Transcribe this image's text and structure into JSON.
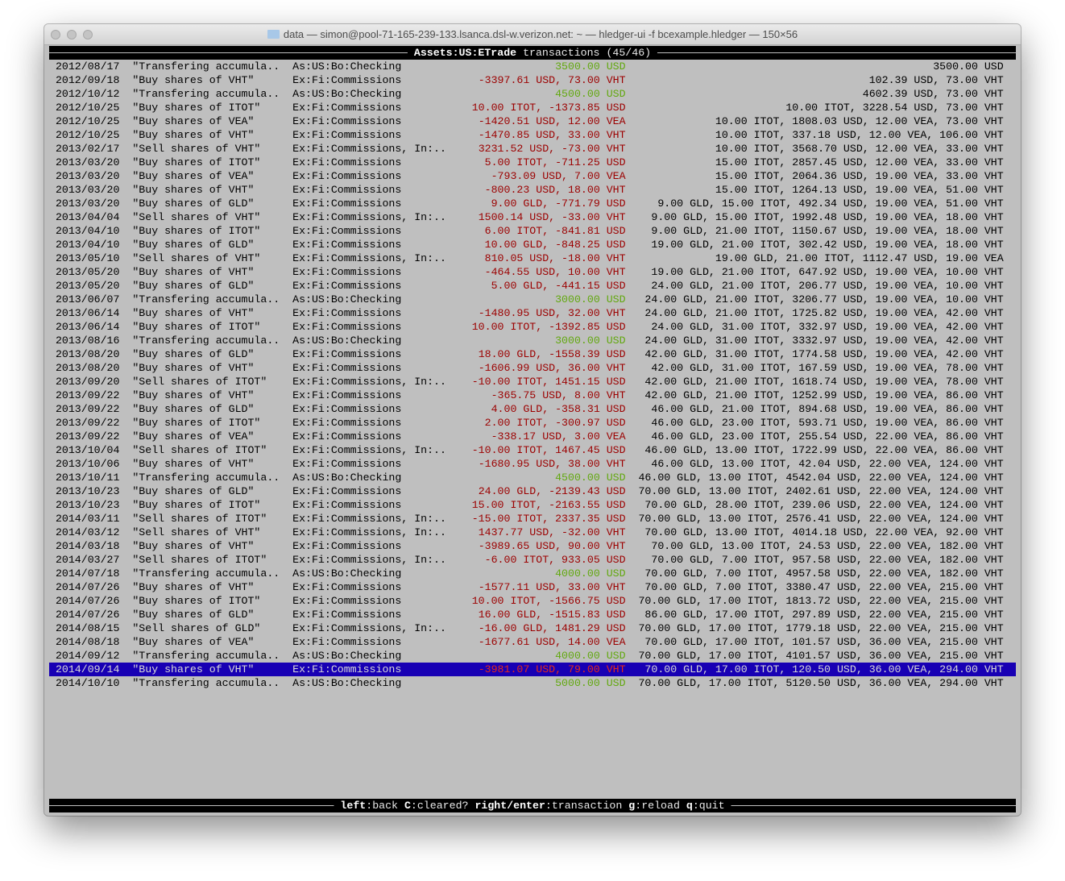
{
  "window": {
    "title": "data — simon@pool-71-165-239-133.lsanca.dsl-w.verizon.net: ~ — hledger-ui -f bcexample.hledger — 150×56",
    "folder_icon": "folder-icon"
  },
  "header": {
    "account": "Assets:US:ETrade",
    "suffix": "transactions (45/46)"
  },
  "colors": {
    "background": "#bfbfbf",
    "positive_amount": "#62a80f",
    "negative_amount": "#9c0000",
    "selection": "#1800b4"
  },
  "selected_index": 44,
  "rows": [
    {
      "date": "2012/08/17",
      "desc": "\"Transfering accumula..",
      "account": "As:US:Bo:Checking",
      "amount": "3500.00 USD",
      "style": "green",
      "balance": "3500.00 USD"
    },
    {
      "date": "2012/09/18",
      "desc": "\"Buy shares of VHT\"",
      "account": "Ex:Fi:Commissions",
      "amount": "-3397.61 USD, 73.00 VHT",
      "style": "red",
      "balance": "102.39 USD, 73.00 VHT"
    },
    {
      "date": "2012/10/12",
      "desc": "\"Transfering accumula..",
      "account": "As:US:Bo:Checking",
      "amount": "4500.00 USD",
      "style": "green",
      "balance": "4602.39 USD, 73.00 VHT"
    },
    {
      "date": "2012/10/25",
      "desc": "\"Buy shares of ITOT\"",
      "account": "Ex:Fi:Commissions",
      "amount": "10.00 ITOT, -1373.85 USD",
      "style": "red",
      "balance": "10.00 ITOT, 3228.54 USD, 73.00 VHT"
    },
    {
      "date": "2012/10/25",
      "desc": "\"Buy shares of VEA\"",
      "account": "Ex:Fi:Commissions",
      "amount": "-1420.51 USD, 12.00 VEA",
      "style": "red",
      "balance": "10.00 ITOT, 1808.03 USD, 12.00 VEA, 73.00 VHT"
    },
    {
      "date": "2012/10/25",
      "desc": "\"Buy shares of VHT\"",
      "account": "Ex:Fi:Commissions",
      "amount": "-1470.85 USD, 33.00 VHT",
      "style": "red",
      "balance": "10.00 ITOT, 337.18 USD, 12.00 VEA, 106.00 VHT"
    },
    {
      "date": "2013/02/17",
      "desc": "\"Sell shares of VHT\"",
      "account": "Ex:Fi:Commissions, In:..",
      "amount": "3231.52 USD, -73.00 VHT",
      "style": "red",
      "balance": "10.00 ITOT, 3568.70 USD, 12.00 VEA, 33.00 VHT"
    },
    {
      "date": "2013/03/20",
      "desc": "\"Buy shares of ITOT\"",
      "account": "Ex:Fi:Commissions",
      "amount": "5.00 ITOT, -711.25 USD",
      "style": "red",
      "balance": "15.00 ITOT, 2857.45 USD, 12.00 VEA, 33.00 VHT"
    },
    {
      "date": "2013/03/20",
      "desc": "\"Buy shares of VEA\"",
      "account": "Ex:Fi:Commissions",
      "amount": "-793.09 USD, 7.00 VEA",
      "style": "red",
      "balance": "15.00 ITOT, 2064.36 USD, 19.00 VEA, 33.00 VHT"
    },
    {
      "date": "2013/03/20",
      "desc": "\"Buy shares of VHT\"",
      "account": "Ex:Fi:Commissions",
      "amount": "-800.23 USD, 18.00 VHT",
      "style": "red",
      "balance": "15.00 ITOT, 1264.13 USD, 19.00 VEA, 51.00 VHT"
    },
    {
      "date": "2013/03/20",
      "desc": "\"Buy shares of GLD\"",
      "account": "Ex:Fi:Commissions",
      "amount": "9.00 GLD, -771.79 USD",
      "style": "red",
      "balance": "9.00 GLD, 15.00 ITOT, 492.34 USD, 19.00 VEA, 51.00 VHT"
    },
    {
      "date": "2013/04/04",
      "desc": "\"Sell shares of VHT\"",
      "account": "Ex:Fi:Commissions, In:..",
      "amount": "1500.14 USD, -33.00 VHT",
      "style": "red",
      "balance": "9.00 GLD, 15.00 ITOT, 1992.48 USD, 19.00 VEA, 18.00 VHT"
    },
    {
      "date": "2013/04/10",
      "desc": "\"Buy shares of ITOT\"",
      "account": "Ex:Fi:Commissions",
      "amount": "6.00 ITOT, -841.81 USD",
      "style": "red",
      "balance": "9.00 GLD, 21.00 ITOT, 1150.67 USD, 19.00 VEA, 18.00 VHT"
    },
    {
      "date": "2013/04/10",
      "desc": "\"Buy shares of GLD\"",
      "account": "Ex:Fi:Commissions",
      "amount": "10.00 GLD, -848.25 USD",
      "style": "red",
      "balance": "19.00 GLD, 21.00 ITOT, 302.42 USD, 19.00 VEA, 18.00 VHT"
    },
    {
      "date": "2013/05/10",
      "desc": "\"Sell shares of VHT\"",
      "account": "Ex:Fi:Commissions, In:..",
      "amount": "810.05 USD, -18.00 VHT",
      "style": "red",
      "balance": "19.00 GLD, 21.00 ITOT, 1112.47 USD, 19.00 VEA"
    },
    {
      "date": "2013/05/20",
      "desc": "\"Buy shares of VHT\"",
      "account": "Ex:Fi:Commissions",
      "amount": "-464.55 USD, 10.00 VHT",
      "style": "red",
      "balance": "19.00 GLD, 21.00 ITOT, 647.92 USD, 19.00 VEA, 10.00 VHT"
    },
    {
      "date": "2013/05/20",
      "desc": "\"Buy shares of GLD\"",
      "account": "Ex:Fi:Commissions",
      "amount": "5.00 GLD, -441.15 USD",
      "style": "red",
      "balance": "24.00 GLD, 21.00 ITOT, 206.77 USD, 19.00 VEA, 10.00 VHT"
    },
    {
      "date": "2013/06/07",
      "desc": "\"Transfering accumula..",
      "account": "As:US:Bo:Checking",
      "amount": "3000.00 USD",
      "style": "green",
      "balance": "24.00 GLD, 21.00 ITOT, 3206.77 USD, 19.00 VEA, 10.00 VHT"
    },
    {
      "date": "2013/06/14",
      "desc": "\"Buy shares of VHT\"",
      "account": "Ex:Fi:Commissions",
      "amount": "-1480.95 USD, 32.00 VHT",
      "style": "red",
      "balance": "24.00 GLD, 21.00 ITOT, 1725.82 USD, 19.00 VEA, 42.00 VHT"
    },
    {
      "date": "2013/06/14",
      "desc": "\"Buy shares of ITOT\"",
      "account": "Ex:Fi:Commissions",
      "amount": "10.00 ITOT, -1392.85 USD",
      "style": "red",
      "balance": "24.00 GLD, 31.00 ITOT, 332.97 USD, 19.00 VEA, 42.00 VHT"
    },
    {
      "date": "2013/08/16",
      "desc": "\"Transfering accumula..",
      "account": "As:US:Bo:Checking",
      "amount": "3000.00 USD",
      "style": "green",
      "balance": "24.00 GLD, 31.00 ITOT, 3332.97 USD, 19.00 VEA, 42.00 VHT"
    },
    {
      "date": "2013/08/20",
      "desc": "\"Buy shares of GLD\"",
      "account": "Ex:Fi:Commissions",
      "amount": "18.00 GLD, -1558.39 USD",
      "style": "red",
      "balance": "42.00 GLD, 31.00 ITOT, 1774.58 USD, 19.00 VEA, 42.00 VHT"
    },
    {
      "date": "2013/08/20",
      "desc": "\"Buy shares of VHT\"",
      "account": "Ex:Fi:Commissions",
      "amount": "-1606.99 USD, 36.00 VHT",
      "style": "red",
      "balance": "42.00 GLD, 31.00 ITOT, 167.59 USD, 19.00 VEA, 78.00 VHT"
    },
    {
      "date": "2013/09/20",
      "desc": "\"Sell shares of ITOT\"",
      "account": "Ex:Fi:Commissions, In:..",
      "amount": "-10.00 ITOT, 1451.15 USD",
      "style": "red",
      "balance": "42.00 GLD, 21.00 ITOT, 1618.74 USD, 19.00 VEA, 78.00 VHT"
    },
    {
      "date": "2013/09/22",
      "desc": "\"Buy shares of VHT\"",
      "account": "Ex:Fi:Commissions",
      "amount": "-365.75 USD, 8.00 VHT",
      "style": "red",
      "balance": "42.00 GLD, 21.00 ITOT, 1252.99 USD, 19.00 VEA, 86.00 VHT"
    },
    {
      "date": "2013/09/22",
      "desc": "\"Buy shares of GLD\"",
      "account": "Ex:Fi:Commissions",
      "amount": "4.00 GLD, -358.31 USD",
      "style": "red",
      "balance": "46.00 GLD, 21.00 ITOT, 894.68 USD, 19.00 VEA, 86.00 VHT"
    },
    {
      "date": "2013/09/22",
      "desc": "\"Buy shares of ITOT\"",
      "account": "Ex:Fi:Commissions",
      "amount": "2.00 ITOT, -300.97 USD",
      "style": "red",
      "balance": "46.00 GLD, 23.00 ITOT, 593.71 USD, 19.00 VEA, 86.00 VHT"
    },
    {
      "date": "2013/09/22",
      "desc": "\"Buy shares of VEA\"",
      "account": "Ex:Fi:Commissions",
      "amount": "-338.17 USD, 3.00 VEA",
      "style": "red",
      "balance": "46.00 GLD, 23.00 ITOT, 255.54 USD, 22.00 VEA, 86.00 VHT"
    },
    {
      "date": "2013/10/04",
      "desc": "\"Sell shares of ITOT\"",
      "account": "Ex:Fi:Commissions, In:..",
      "amount": "-10.00 ITOT, 1467.45 USD",
      "style": "red",
      "balance": "46.00 GLD, 13.00 ITOT, 1722.99 USD, 22.00 VEA, 86.00 VHT"
    },
    {
      "date": "2013/10/06",
      "desc": "\"Buy shares of VHT\"",
      "account": "Ex:Fi:Commissions",
      "amount": "-1680.95 USD, 38.00 VHT",
      "style": "red",
      "balance": "46.00 GLD, 13.00 ITOT, 42.04 USD, 22.00 VEA, 124.00 VHT"
    },
    {
      "date": "2013/10/11",
      "desc": "\"Transfering accumula..",
      "account": "As:US:Bo:Checking",
      "amount": "4500.00 USD",
      "style": "green",
      "balance": "46.00 GLD, 13.00 ITOT, 4542.04 USD, 22.00 VEA, 124.00 VHT"
    },
    {
      "date": "2013/10/23",
      "desc": "\"Buy shares of GLD\"",
      "account": "Ex:Fi:Commissions",
      "amount": "24.00 GLD, -2139.43 USD",
      "style": "red",
      "balance": "70.00 GLD, 13.00 ITOT, 2402.61 USD, 22.00 VEA, 124.00 VHT"
    },
    {
      "date": "2013/10/23",
      "desc": "\"Buy shares of ITOT\"",
      "account": "Ex:Fi:Commissions",
      "amount": "15.00 ITOT, -2163.55 USD",
      "style": "red",
      "balance": "70.00 GLD, 28.00 ITOT, 239.06 USD, 22.00 VEA, 124.00 VHT"
    },
    {
      "date": "2014/03/11",
      "desc": "\"Sell shares of ITOT\"",
      "account": "Ex:Fi:Commissions, In:..",
      "amount": "-15.00 ITOT, 2337.35 USD",
      "style": "red",
      "balance": "70.00 GLD, 13.00 ITOT, 2576.41 USD, 22.00 VEA, 124.00 VHT"
    },
    {
      "date": "2014/03/12",
      "desc": "\"Sell shares of VHT\"",
      "account": "Ex:Fi:Commissions, In:..",
      "amount": "1437.77 USD, -32.00 VHT",
      "style": "red",
      "balance": "70.00 GLD, 13.00 ITOT, 4014.18 USD, 22.00 VEA, 92.00 VHT"
    },
    {
      "date": "2014/03/18",
      "desc": "\"Buy shares of VHT\"",
      "account": "Ex:Fi:Commissions",
      "amount": "-3989.65 USD, 90.00 VHT",
      "style": "red",
      "balance": "70.00 GLD, 13.00 ITOT, 24.53 USD, 22.00 VEA, 182.00 VHT"
    },
    {
      "date": "2014/03/27",
      "desc": "\"Sell shares of ITOT\"",
      "account": "Ex:Fi:Commissions, In:..",
      "amount": "-6.00 ITOT, 933.05 USD",
      "style": "red",
      "balance": "70.00 GLD, 7.00 ITOT, 957.58 USD, 22.00 VEA, 182.00 VHT"
    },
    {
      "date": "2014/07/18",
      "desc": "\"Transfering accumula..",
      "account": "As:US:Bo:Checking",
      "amount": "4000.00 USD",
      "style": "green",
      "balance": "70.00 GLD, 7.00 ITOT, 4957.58 USD, 22.00 VEA, 182.00 VHT"
    },
    {
      "date": "2014/07/26",
      "desc": "\"Buy shares of VHT\"",
      "account": "Ex:Fi:Commissions",
      "amount": "-1577.11 USD, 33.00 VHT",
      "style": "red",
      "balance": "70.00 GLD, 7.00 ITOT, 3380.47 USD, 22.00 VEA, 215.00 VHT"
    },
    {
      "date": "2014/07/26",
      "desc": "\"Buy shares of ITOT\"",
      "account": "Ex:Fi:Commissions",
      "amount": "10.00 ITOT, -1566.75 USD",
      "style": "red",
      "balance": "70.00 GLD, 17.00 ITOT, 1813.72 USD, 22.00 VEA, 215.00 VHT"
    },
    {
      "date": "2014/07/26",
      "desc": "\"Buy shares of GLD\"",
      "account": "Ex:Fi:Commissions",
      "amount": "16.00 GLD, -1515.83 USD",
      "style": "red",
      "balance": "86.00 GLD, 17.00 ITOT, 297.89 USD, 22.00 VEA, 215.00 VHT"
    },
    {
      "date": "2014/08/15",
      "desc": "\"Sell shares of GLD\"",
      "account": "Ex:Fi:Commissions, In:..",
      "amount": "-16.00 GLD, 1481.29 USD",
      "style": "red",
      "balance": "70.00 GLD, 17.00 ITOT, 1779.18 USD, 22.00 VEA, 215.00 VHT"
    },
    {
      "date": "2014/08/18",
      "desc": "\"Buy shares of VEA\"",
      "account": "Ex:Fi:Commissions",
      "amount": "-1677.61 USD, 14.00 VEA",
      "style": "red",
      "balance": "70.00 GLD, 17.00 ITOT, 101.57 USD, 36.00 VEA, 215.00 VHT"
    },
    {
      "date": "2014/09/12",
      "desc": "\"Transfering accumula..",
      "account": "As:US:Bo:Checking",
      "amount": "4000.00 USD",
      "style": "green",
      "balance": "70.00 GLD, 17.00 ITOT, 4101.57 USD, 36.00 VEA, 215.00 VHT"
    },
    {
      "date": "2014/09/14",
      "desc": "\"Buy shares of VHT\"",
      "account": "Ex:Fi:Commissions",
      "amount": "-3981.07 USD, 79.00 VHT",
      "style": "red",
      "balance": "70.00 GLD, 17.00 ITOT, 120.50 USD, 36.00 VEA, 294.00 VHT"
    },
    {
      "date": "2014/10/10",
      "desc": "\"Transfering accumula..",
      "account": "As:US:Bo:Checking",
      "amount": "5000.00 USD",
      "style": "green",
      "balance": "70.00 GLD, 17.00 ITOT, 5120.50 USD, 36.00 VEA, 294.00 VHT"
    }
  ],
  "footer": {
    "keys": [
      {
        "key": "left",
        "action": "back"
      },
      {
        "key": "C",
        "action": "cleared?"
      },
      {
        "key": "right/enter",
        "action": "transaction"
      },
      {
        "key": "g",
        "action": "reload"
      },
      {
        "key": "q",
        "action": "quit"
      }
    ]
  }
}
